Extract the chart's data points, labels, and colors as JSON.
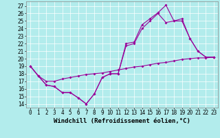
{
  "bg_color": "#b2ecec",
  "line_color": "#990099",
  "x": [
    0,
    1,
    2,
    3,
    4,
    5,
    6,
    7,
    8,
    9,
    10,
    11,
    12,
    13,
    14,
    15,
    16,
    17,
    18,
    19,
    20,
    21,
    22,
    23
  ],
  "line1": [
    19,
    17.7,
    16.5,
    16.3,
    15.5,
    15.5,
    14.8,
    14,
    15.3,
    17.5,
    18,
    18,
    21.7,
    22,
    24,
    25,
    26,
    24.8,
    25,
    25,
    22.7,
    21,
    20.2,
    20.2
  ],
  "line2": [
    19,
    17.7,
    16.5,
    16.3,
    15.5,
    15.5,
    14.8,
    14,
    15.3,
    17.5,
    18,
    18,
    22,
    22.2,
    24.5,
    25.3,
    26.1,
    27.1,
    25,
    25.3,
    22.7,
    21,
    20.2,
    20.2
  ],
  "line3": [
    19,
    17.7,
    17.0,
    17.0,
    17.3,
    17.5,
    17.7,
    17.9,
    18.0,
    18.1,
    18.3,
    18.5,
    18.7,
    18.9,
    19.0,
    19.2,
    19.4,
    19.5,
    19.7,
    19.9,
    20.0,
    20.1,
    20.1,
    20.2
  ],
  "xlim": [
    -0.5,
    23.5
  ],
  "ylim": [
    13.5,
    27.6
  ],
  "yticks": [
    14,
    15,
    16,
    17,
    18,
    19,
    20,
    21,
    22,
    23,
    24,
    25,
    26,
    27
  ],
  "xticks": [
    0,
    1,
    2,
    3,
    4,
    5,
    6,
    7,
    8,
    9,
    10,
    11,
    12,
    13,
    14,
    15,
    16,
    17,
    18,
    19,
    20,
    21,
    22,
    23
  ],
  "xlabel": "Windchill (Refroidissement éolien,°C)",
  "grid_color": "#ffffff",
  "xlabel_fontsize": 6.5,
  "tick_fontsize": 5.5,
  "markersize": 2.0,
  "linewidth": 0.8
}
